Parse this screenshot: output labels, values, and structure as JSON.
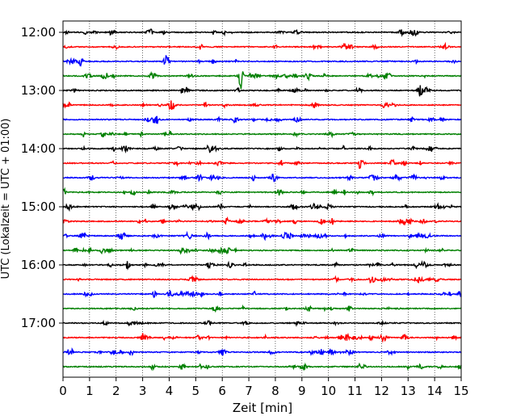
{
  "chart_data": {
    "type": "line",
    "title": "",
    "xlabel": "Zeit  [min]",
    "ylabel": "UTC (Lokalzeit = UTC + 01:00)",
    "xlim": [
      0,
      15
    ],
    "x_ticks": [
      0,
      1,
      2,
      3,
      4,
      5,
      6,
      7,
      8,
      9,
      10,
      11,
      12,
      13,
      14,
      15
    ],
    "x_tick_labels": [
      "0",
      "1",
      "2",
      "3",
      "4",
      "5",
      "6",
      "7",
      "8",
      "9",
      "10",
      "11",
      "12",
      "13",
      "14",
      "15"
    ],
    "y_tick_labels": [
      "12:00",
      "13:00",
      "14:00",
      "15:00",
      "16:00",
      "17:00"
    ],
    "grid": "vertical dotted",
    "trace_colors": [
      "#000000",
      "#ff0000",
      "#0000ff",
      "#008000"
    ],
    "traces": [
      {
        "start": "12:00",
        "color": "#000000"
      },
      {
        "start": "12:15",
        "color": "#ff0000"
      },
      {
        "start": "12:30",
        "color": "#0000ff"
      },
      {
        "start": "12:45",
        "color": "#008000"
      },
      {
        "start": "13:00",
        "color": "#000000"
      },
      {
        "start": "13:15",
        "color": "#ff0000"
      },
      {
        "start": "13:30",
        "color": "#0000ff"
      },
      {
        "start": "13:45",
        "color": "#008000"
      },
      {
        "start": "14:00",
        "color": "#000000"
      },
      {
        "start": "14:15",
        "color": "#ff0000"
      },
      {
        "start": "14:30",
        "color": "#0000ff"
      },
      {
        "start": "14:45",
        "color": "#008000"
      },
      {
        "start": "15:00",
        "color": "#000000"
      },
      {
        "start": "15:15",
        "color": "#ff0000"
      },
      {
        "start": "15:30",
        "color": "#0000ff"
      },
      {
        "start": "15:45",
        "color": "#008000"
      },
      {
        "start": "16:00",
        "color": "#000000"
      },
      {
        "start": "16:15",
        "color": "#ff0000"
      },
      {
        "start": "16:30",
        "color": "#0000ff"
      },
      {
        "start": "16:45",
        "color": "#008000"
      },
      {
        "start": "17:00",
        "color": "#000000"
      },
      {
        "start": "17:15",
        "color": "#ff0000"
      },
      {
        "start": "17:30",
        "color": "#0000ff"
      },
      {
        "start": "17:45",
        "color": "#008000"
      }
    ],
    "notable_events": [
      {
        "trace": "12:45",
        "minute": 6.7,
        "amplitude": "large"
      },
      {
        "trace": "13:00",
        "minute": 13.45,
        "amplitude": "medium"
      },
      {
        "trace": "14:00",
        "minute": 5.5,
        "amplitude": "small"
      },
      {
        "trace": "17:15",
        "minute": 10.7,
        "amplitude": "small"
      }
    ]
  }
}
